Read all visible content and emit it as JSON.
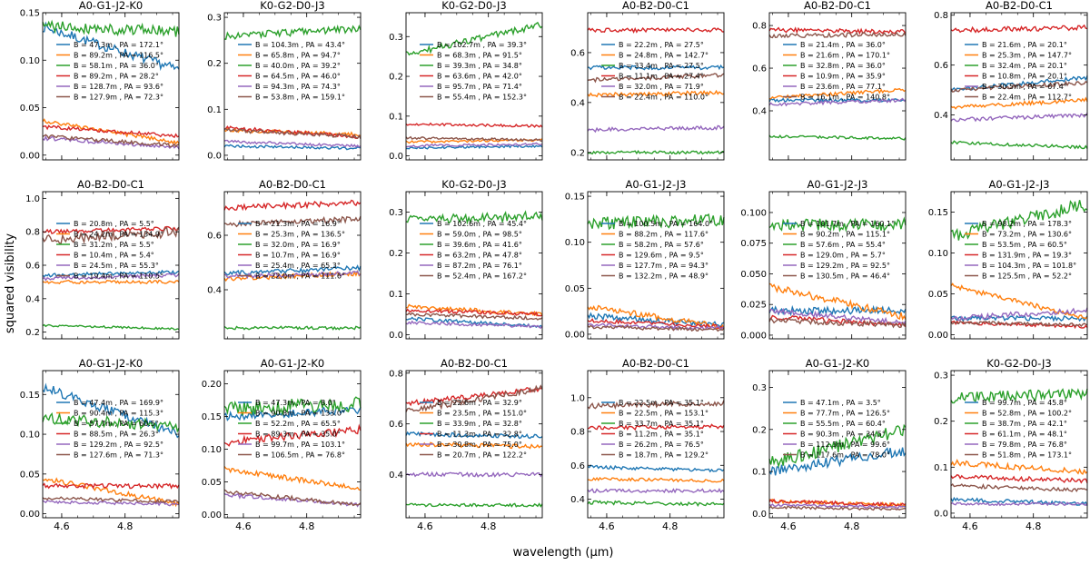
{
  "figure": {
    "ylabel": "squared visibility",
    "xlabel": "wavelength (μm)"
  },
  "colors": [
    "#1f77b4",
    "#ff7f0e",
    "#2ca02c",
    "#d62728",
    "#9467bd",
    "#8c564b"
  ],
  "chart_data": [
    {
      "type": "line",
      "title": "A0-G1-J2-K0",
      "ylim": [
        -0.005,
        0.15
      ],
      "yticks": [
        "0.00",
        "0.05",
        "0.10",
        "0.15"
      ],
      "legend": [
        "B = 47.3m , PA = 172.1°",
        "B = 89.2m , PA = 116.5°",
        "B = 58.1m , PA = 36.0°",
        "B = 89.2m , PA = 28.2°",
        "B = 128.7m , PA = 93.6°",
        "B = 127.9m , PA = 72.3°"
      ],
      "series": [
        {
          "start": 0.135,
          "end": 0.09,
          "noise": 0.005
        },
        {
          "start": 0.036,
          "end": 0.013,
          "noise": 0.002
        },
        {
          "start": 0.136,
          "end": 0.13,
          "noise": 0.006
        },
        {
          "start": 0.03,
          "end": 0.02,
          "noise": 0.002
        },
        {
          "start": 0.018,
          "end": 0.008,
          "noise": 0.002
        },
        {
          "start": 0.02,
          "end": 0.01,
          "noise": 0.002
        }
      ]
    },
    {
      "type": "line",
      "title": "K0-G2-D0-J3",
      "ylim": [
        -0.01,
        0.31
      ],
      "yticks": [
        "0.0",
        "0.1",
        "0.2",
        "0.3"
      ],
      "legend": [
        "B = 104.3m , PA = 43.4°",
        "B = 65.8m , PA = 94.7°",
        "B = 40.0m , PA = 39.2°",
        "B = 64.5m , PA = 46.0°",
        "B = 94.3m , PA = 74.3°",
        "B = 53.8m , PA = 159.1°"
      ],
      "series": [
        {
          "start": 0.02,
          "end": 0.015,
          "noise": 0.003
        },
        {
          "start": 0.055,
          "end": 0.045,
          "noise": 0.004
        },
        {
          "start": 0.26,
          "end": 0.275,
          "noise": 0.008
        },
        {
          "start": 0.06,
          "end": 0.04,
          "noise": 0.004
        },
        {
          "start": 0.03,
          "end": 0.02,
          "noise": 0.003
        },
        {
          "start": 0.055,
          "end": 0.04,
          "noise": 0.004
        }
      ]
    },
    {
      "type": "line",
      "title": "K0-G2-D0-J3",
      "ylim": [
        -0.01,
        0.36
      ],
      "yticks": [
        "0.0",
        "0.1",
        "0.2",
        "0.3"
      ],
      "legend": [
        "B = 102.7m , PA = 39.3°",
        "B = 68.3m , PA = 91.5°",
        "B = 39.3m , PA = 34.8°",
        "B = 63.6m , PA = 42.0°",
        "B = 95.7m , PA = 71.4°",
        "B = 55.4m , PA = 152.3°"
      ],
      "series": [
        {
          "start": 0.02,
          "end": 0.025,
          "noise": 0.003
        },
        {
          "start": 0.035,
          "end": 0.04,
          "noise": 0.003
        },
        {
          "start": 0.255,
          "end": 0.33,
          "noise": 0.008
        },
        {
          "start": 0.08,
          "end": 0.075,
          "noise": 0.003
        },
        {
          "start": 0.025,
          "end": 0.03,
          "noise": 0.003
        },
        {
          "start": 0.045,
          "end": 0.04,
          "noise": 0.003
        }
      ]
    },
    {
      "type": "line",
      "title": "A0-B2-D0-C1",
      "ylim": [
        0.17,
        0.76
      ],
      "yticks": [
        "0.2",
        "0.4",
        "0.6"
      ],
      "legend": [
        "B = 22.2m , PA = 27.5°",
        "B = 24.8m , PA = 142.7°",
        "B = 33.4m , PA = 27.5°",
        "B = 11.1m , PA = 27.4°",
        "B = 32.0m , PA = 71.9°",
        "B = 22.4m , PA = 110.0°"
      ],
      "series": [
        {
          "start": 0.54,
          "end": 0.54,
          "noise": 0.008
        },
        {
          "start": 0.43,
          "end": 0.44,
          "noise": 0.008
        },
        {
          "start": 0.2,
          "end": 0.2,
          "noise": 0.006
        },
        {
          "start": 0.69,
          "end": 0.69,
          "noise": 0.008
        },
        {
          "start": 0.29,
          "end": 0.3,
          "noise": 0.008
        },
        {
          "start": 0.49,
          "end": 0.51,
          "noise": 0.008
        }
      ]
    },
    {
      "type": "line",
      "title": "A0-B2-D0-C1",
      "ylim": [
        0.17,
        0.86
      ],
      "yticks": [
        "0.4",
        "0.6",
        "0.8"
      ],
      "legend": [
        "B = 21.4m , PA = 36.0°",
        "B = 21.6m , PA = 170.1°",
        "B = 32.8m , PA = 36.0°",
        "B = 10.9m , PA = 35.9°",
        "B = 23.6m , PA = 77.1°",
        "B = 16.1m , PA = 140.8°"
      ],
      "series": [
        {
          "start": 0.45,
          "end": 0.45,
          "noise": 0.008
        },
        {
          "start": 0.46,
          "end": 0.5,
          "noise": 0.008
        },
        {
          "start": 0.28,
          "end": 0.27,
          "noise": 0.006
        },
        {
          "start": 0.78,
          "end": 0.77,
          "noise": 0.01
        },
        {
          "start": 0.43,
          "end": 0.45,
          "noise": 0.008
        },
        {
          "start": 0.75,
          "end": 0.76,
          "noise": 0.01
        }
      ]
    },
    {
      "type": "line",
      "title": "A0-B2-D0-C1",
      "ylim": [
        0.22,
        0.81
      ],
      "yticks": [
        "0.4",
        "0.6",
        "0.8"
      ],
      "legend": [
        "B = 21.6m , PA = 20.1°",
        "B = 25.3m , PA = 147.7°",
        "B = 32.4m , PA = 20.1°",
        "B = 10.8m , PA = 20.1°",
        "B = 30.5m , PA = 67.4°",
        "B = 22.4m , PA = 112.7°"
      ],
      "series": [
        {
          "start": 0.5,
          "end": 0.55,
          "noise": 0.008
        },
        {
          "start": 0.43,
          "end": 0.46,
          "noise": 0.008
        },
        {
          "start": 0.29,
          "end": 0.27,
          "noise": 0.006
        },
        {
          "start": 0.74,
          "end": 0.75,
          "noise": 0.01
        },
        {
          "start": 0.38,
          "end": 0.4,
          "noise": 0.008
        },
        {
          "start": 0.5,
          "end": 0.53,
          "noise": 0.008
        }
      ]
    },
    {
      "type": "line",
      "title": "A0-B2-D0-C1",
      "ylim": [
        0.16,
        1.04
      ],
      "yticks": [
        "0.2",
        "0.4",
        "0.6",
        "0.8",
        "1.0"
      ],
      "legend": [
        "B = 20.8m , PA = 5.5°",
        "B = 24.2m , PA = 134.9°",
        "B = 31.2m , PA = 5.5°",
        "B = 10.4m , PA = 5.4°",
        "B = 24.5m , PA = 55.3°",
        "B = 19.4m , PA = 110.5°"
      ],
      "series": [
        {
          "start": 0.54,
          "end": 0.56,
          "noise": 0.01
        },
        {
          "start": 0.5,
          "end": 0.5,
          "noise": 0.01
        },
        {
          "start": 0.24,
          "end": 0.22,
          "noise": 0.006
        },
        {
          "start": 0.8,
          "end": 0.82,
          "noise": 0.012
        },
        {
          "start": 0.52,
          "end": 0.54,
          "noise": 0.01
        },
        {
          "start": 0.75,
          "end": 0.8,
          "noise": 0.03
        }
      ]
    },
    {
      "type": "line",
      "title": "A0-B2-D0-C1",
      "ylim": [
        0.22,
        0.76
      ],
      "yticks": [
        "0.4",
        "0.6"
      ],
      "legend": [
        "B = 21.3m , PA = 16.9°",
        "B = 25.3m , PA = 136.5°",
        "B = 32.0m , PA = 16.9°",
        "B = 10.7m , PA = 16.9°",
        "B = 25.4m , PA = 65.3°",
        "B = 22.0m , PA = 111.6°"
      ],
      "series": [
        {
          "start": 0.46,
          "end": 0.48,
          "noise": 0.008
        },
        {
          "start": 0.44,
          "end": 0.46,
          "noise": 0.008
        },
        {
          "start": 0.26,
          "end": 0.26,
          "noise": 0.006
        },
        {
          "start": 0.7,
          "end": 0.72,
          "noise": 0.01
        },
        {
          "start": 0.45,
          "end": 0.46,
          "noise": 0.008
        },
        {
          "start": 0.64,
          "end": 0.66,
          "noise": 0.01
        }
      ]
    },
    {
      "type": "line",
      "title": "K0-G2-D0-J3",
      "ylim": [
        -0.01,
        0.35
      ],
      "yticks": [
        "0.0",
        "0.1",
        "0.2",
        "0.3"
      ],
      "legend": [
        "B = 102.6m , PA = 45.4°",
        "B = 59.0m , PA = 98.5°",
        "B = 39.6m , PA = 41.6°",
        "B = 63.2m , PA = 47.8°",
        "B = 87.2m , PA = 76.1°",
        "B = 52.4m , PA = 167.2°"
      ],
      "series": [
        {
          "start": 0.04,
          "end": 0.02,
          "noise": 0.004
        },
        {
          "start": 0.07,
          "end": 0.05,
          "noise": 0.005
        },
        {
          "start": 0.28,
          "end": 0.29,
          "noise": 0.012
        },
        {
          "start": 0.06,
          "end": 0.05,
          "noise": 0.004
        },
        {
          "start": 0.03,
          "end": 0.02,
          "noise": 0.004
        },
        {
          "start": 0.05,
          "end": 0.04,
          "noise": 0.004
        }
      ]
    },
    {
      "type": "line",
      "title": "A0-G1-J2-J3",
      "ylim": [
        -0.005,
        0.155
      ],
      "yticks": [
        "0.00",
        "0.05",
        "0.10",
        "0.15"
      ],
      "legend": [
        "B = 100.5m , PA = 164.0°",
        "B = 88.2m , PA = 117.6°",
        "B = 58.2m , PA = 57.6°",
        "B = 129.6m , PA = 9.5°",
        "B = 127.7m , PA = 94.3°",
        "B = 132.2m , PA = 48.9°"
      ],
      "series": [
        {
          "start": 0.02,
          "end": 0.01,
          "noise": 0.003
        },
        {
          "start": 0.03,
          "end": 0.008,
          "noise": 0.003
        },
        {
          "start": 0.12,
          "end": 0.125,
          "noise": 0.007
        },
        {
          "start": 0.015,
          "end": 0.008,
          "noise": 0.002
        },
        {
          "start": 0.01,
          "end": 0.006,
          "noise": 0.002
        },
        {
          "start": 0.008,
          "end": 0.005,
          "noise": 0.002
        }
      ]
    },
    {
      "type": "line",
      "title": "A0-G1-J2-J3",
      "ylim": [
        -0.003,
        0.117
      ],
      "yticks": [
        "0.000",
        "0.025",
        "0.050",
        "0.075",
        "0.100"
      ],
      "legend": [
        "B = 101.7m , PA = 160.1°",
        "B = 90.2m , PA = 115.1°",
        "B = 57.6m , PA = 55.4°",
        "B = 129.0m , PA = 5.7°",
        "B = 129.2m , PA = 92.5°",
        "B = 130.5m , PA = 46.4°"
      ],
      "series": [
        {
          "start": 0.02,
          "end": 0.02,
          "noise": 0.003
        },
        {
          "start": 0.04,
          "end": 0.015,
          "noise": 0.003
        },
        {
          "start": 0.09,
          "end": 0.09,
          "noise": 0.005
        },
        {
          "start": 0.015,
          "end": 0.008,
          "noise": 0.002
        },
        {
          "start": 0.02,
          "end": 0.01,
          "noise": 0.002
        },
        {
          "start": 0.012,
          "end": 0.008,
          "noise": 0.002
        }
      ]
    },
    {
      "type": "line",
      "title": "A0-G1-J2-J3",
      "ylim": [
        -0.005,
        0.175
      ],
      "yticks": [
        "0.00",
        "0.05",
        "0.10",
        "0.15"
      ],
      "legend": [
        "B = 98.2m , PA = 178.3°",
        "B = 73.2m , PA = 130.6°",
        "B = 53.5m , PA = 60.5°",
        "B = 131.9m , PA = 19.3°",
        "B = 104.3m , PA = 101.8°",
        "B = 125.5m , PA = 52.2°"
      ],
      "series": [
        {
          "start": 0.02,
          "end": 0.02,
          "noise": 0.003
        },
        {
          "start": 0.06,
          "end": 0.02,
          "noise": 0.003
        },
        {
          "start": 0.12,
          "end": 0.16,
          "noise": 0.008
        },
        {
          "start": 0.015,
          "end": 0.01,
          "noise": 0.002
        },
        {
          "start": 0.02,
          "end": 0.03,
          "noise": 0.003
        },
        {
          "start": 0.015,
          "end": 0.012,
          "noise": 0.002
        }
      ]
    },
    {
      "type": "line",
      "title": "A0-G1-J2-K0",
      "ylim": [
        -0.005,
        0.18
      ],
      "yticks": [
        "0.00",
        "0.05",
        "0.10",
        "0.15"
      ],
      "legend": [
        "B = 47.4m , PA = 169.9°",
        "B = 90.4m , PA = 115.3°",
        "B = 57.7m , PA = 60.5°",
        "B = 88.5m , PA = 26.3°",
        "B = 129.2m , PA = 92.5°",
        "B = 127.6m , PA = 71.3°"
      ],
      "series": [
        {
          "start": 0.16,
          "end": 0.1,
          "noise": 0.006
        },
        {
          "start": 0.045,
          "end": 0.012,
          "noise": 0.003
        },
        {
          "start": 0.12,
          "end": 0.11,
          "noise": 0.007
        },
        {
          "start": 0.035,
          "end": 0.035,
          "noise": 0.003
        },
        {
          "start": 0.015,
          "end": 0.012,
          "noise": 0.002
        },
        {
          "start": 0.02,
          "end": 0.015,
          "noise": 0.002
        }
      ]
    },
    {
      "type": "line",
      "title": "A0-G1-J2-K0",
      "ylim": [
        -0.005,
        0.22
      ],
      "yticks": [
        "0.00",
        "0.05",
        "0.10",
        "0.15",
        "0.20"
      ],
      "legend": [
        "B = 47.3m , PA = 8.0°",
        "B = 90.8m , PA = 133.0°",
        "B = 52.2m , PA = 65.5°",
        "B = 89.3m , PA = 35.0°",
        "B = 99.7m , PA = 103.1°",
        "B = 106.5m , PA = 76.8°"
      ],
      "series": [
        {
          "start": 0.15,
          "end": 0.16,
          "noise": 0.006
        },
        {
          "start": 0.07,
          "end": 0.04,
          "noise": 0.004
        },
        {
          "start": 0.16,
          "end": 0.17,
          "noise": 0.012
        },
        {
          "start": 0.11,
          "end": 0.13,
          "noise": 0.006
        },
        {
          "start": 0.03,
          "end": 0.015,
          "noise": 0.003
        },
        {
          "start": 0.035,
          "end": 0.015,
          "noise": 0.003
        }
      ]
    },
    {
      "type": "line",
      "title": "A0-B2-D0-C1",
      "ylim": [
        0.23,
        0.81
      ],
      "yticks": [
        "0.4",
        "0.6",
        "0.8"
      ],
      "legend": [
        "B = 22.6m , PA = 32.9°",
        "B = 23.5m , PA = 151.0°",
        "B = 33.9m , PA = 32.8°",
        "B = 11.3m , PA = 32.8°",
        "B = 30.8m , PA = 75.0°",
        "B = 20.7m , PA = 122.2°"
      ],
      "series": [
        {
          "start": 0.56,
          "end": 0.55,
          "noise": 0.008
        },
        {
          "start": 0.52,
          "end": 0.51,
          "noise": 0.008
        },
        {
          "start": 0.28,
          "end": 0.28,
          "noise": 0.006
        },
        {
          "start": 0.68,
          "end": 0.74,
          "noise": 0.01
        },
        {
          "start": 0.4,
          "end": 0.4,
          "noise": 0.008
        },
        {
          "start": 0.65,
          "end": 0.74,
          "noise": 0.012
        }
      ]
    },
    {
      "type": "line",
      "title": "A0-B2-D0-C1",
      "ylim": [
        0.29,
        1.16
      ],
      "yticks": [
        "0.4",
        "0.6",
        "0.8",
        "1.0"
      ],
      "legend": [
        "B = 22.5m , PA = 35.1°",
        "B = 22.5m , PA = 153.1°",
        "B = 33.7m , PA = 35.1°",
        "B = 11.2m , PA = 35.1°",
        "B = 26.2m , PA = 76.5°",
        "B = 18.7m , PA = 129.2°"
      ],
      "series": [
        {
          "start": 0.59,
          "end": 0.57,
          "noise": 0.01
        },
        {
          "start": 0.52,
          "end": 0.51,
          "noise": 0.01
        },
        {
          "start": 0.38,
          "end": 0.37,
          "noise": 0.01
        },
        {
          "start": 0.82,
          "end": 0.83,
          "noise": 0.012
        },
        {
          "start": 0.45,
          "end": 0.45,
          "noise": 0.01
        },
        {
          "start": 0.95,
          "end": 0.97,
          "noise": 0.015
        }
      ]
    },
    {
      "type": "line",
      "title": "A0-G1-J2-K0",
      "ylim": [
        -0.01,
        0.34
      ],
      "yticks": [
        "0.0",
        "0.1",
        "0.2",
        "0.3"
      ],
      "legend": [
        "B = 47.1m , PA = 3.5°",
        "B = 77.7m , PA = 126.5°",
        "B = 55.5m , PA = 60.4°",
        "B = 90.3m , PA = 34.5°",
        "B = 112.3m , PA = 99.6°",
        "B = 117.6m , PA = 78.0°"
      ],
      "series": [
        {
          "start": 0.1,
          "end": 0.15,
          "noise": 0.012
        },
        {
          "start": 0.03,
          "end": 0.02,
          "noise": 0.004
        },
        {
          "start": 0.12,
          "end": 0.2,
          "noise": 0.015
        },
        {
          "start": 0.03,
          "end": 0.02,
          "noise": 0.004
        },
        {
          "start": 0.02,
          "end": 0.015,
          "noise": 0.003
        },
        {
          "start": 0.015,
          "end": 0.01,
          "noise": 0.003
        }
      ]
    },
    {
      "type": "line",
      "title": "K0-G2-D0-J3",
      "ylim": [
        -0.01,
        0.31
      ],
      "yticks": [
        "0.0",
        "0.1",
        "0.2",
        "0.3"
      ],
      "legend": [
        "B = 99.7m , PA = 45.8°",
        "B = 52.8m , PA = 100.2°",
        "B = 38.7m , PA = 42.1°",
        "B = 61.1m , PA = 48.1°",
        "B = 79.8m , PA = 76.8°",
        "B = 51.8m , PA = 173.1°"
      ],
      "series": [
        {
          "start": 0.03,
          "end": 0.02,
          "noise": 0.004
        },
        {
          "start": 0.11,
          "end": 0.09,
          "noise": 0.006
        },
        {
          "start": 0.25,
          "end": 0.26,
          "noise": 0.012
        },
        {
          "start": 0.08,
          "end": 0.07,
          "noise": 0.005
        },
        {
          "start": 0.02,
          "end": 0.02,
          "noise": 0.003
        },
        {
          "start": 0.06,
          "end": 0.05,
          "noise": 0.004
        }
      ]
    }
  ],
  "xaxis": {
    "xlim": [
      4.54,
      4.97
    ],
    "xticks": [
      4.6,
      4.8
    ],
    "xticklabels": [
      "4.6",
      "4.8"
    ]
  }
}
